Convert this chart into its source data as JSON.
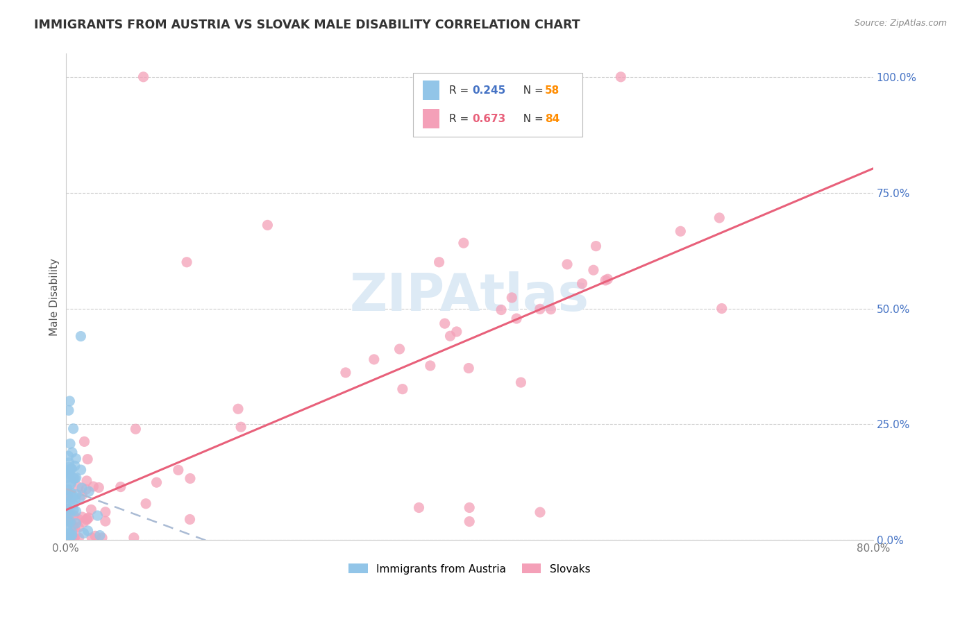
{
  "title": "IMMIGRANTS FROM AUSTRIA VS SLOVAK MALE DISABILITY CORRELATION CHART",
  "source": "Source: ZipAtlas.com",
  "ylabel": "Male Disability",
  "watermark": "ZIPAtlas",
  "legend_austria": "Immigrants from Austria",
  "legend_slovak": "Slovaks",
  "color_austria": "#92C5E8",
  "color_slovak": "#F4A0B8",
  "color_line_austria": "#4472C4",
  "color_line_slovak": "#E8607A",
  "color_r_austria": "#4472C4",
  "color_r_slovak": "#E8607A",
  "color_n": "#FF8C00",
  "r_austria": "0.245",
  "n_austria": "58",
  "r_slovak": "0.673",
  "n_slovak": "84",
  "xlim": [
    0.0,
    0.8
  ],
  "ylim": [
    0.0,
    1.05
  ],
  "background_color": "#FFFFFF",
  "grid_color": "#CCCCCC",
  "watermark_color": "#DDEAF5",
  "title_color": "#333333",
  "right_axis_color": "#4472C4",
  "ytick_vals": [
    0.0,
    0.25,
    0.5,
    0.75,
    1.0
  ],
  "ytick_labels": [
    "0.0%",
    "25.0%",
    "50.0%",
    "75.0%",
    "100.0%"
  ]
}
